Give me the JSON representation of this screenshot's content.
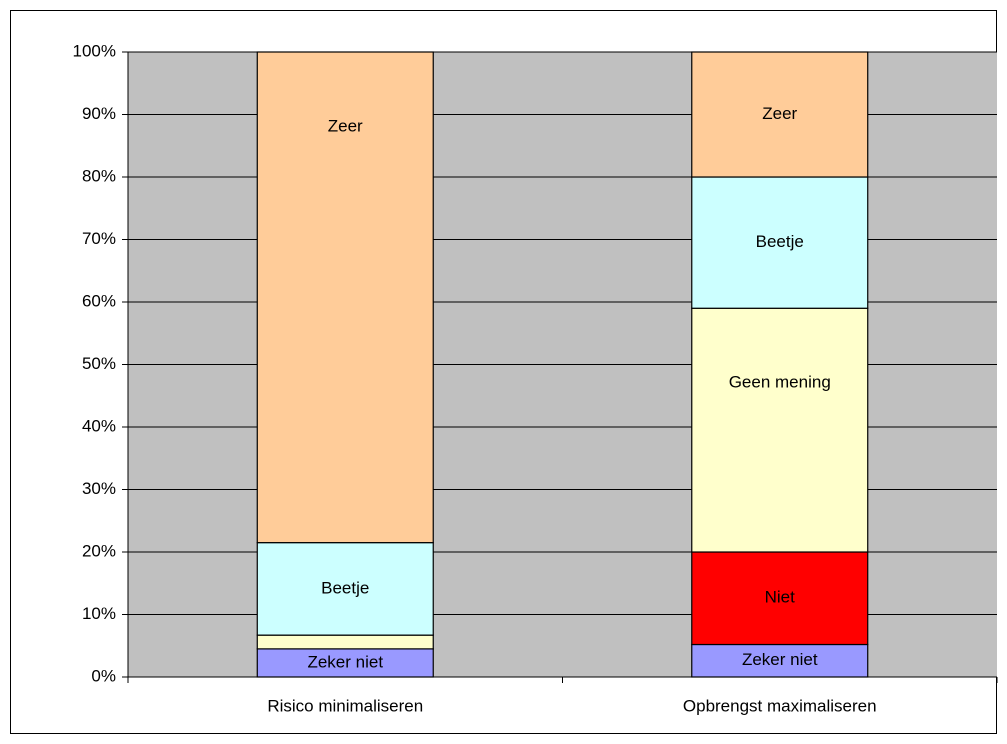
{
  "chart_data": {
    "type": "stacked_bar",
    "categories": [
      "Risico minimaliseren",
      "Opbrengst maximaliseren"
    ],
    "series": [
      {
        "name": "Zeker niet",
        "color": "#9999ff",
        "values": [
          4.5,
          5.2
        ]
      },
      {
        "name": "Niet",
        "color": "#ff0000",
        "values": [
          0,
          14.8
        ]
      },
      {
        "name": "Geen mening",
        "color": "#ffffcc",
        "values": [
          2.2,
          39
        ]
      },
      {
        "name": "Beetje",
        "color": "#ccffff",
        "values": [
          14.8,
          21
        ]
      },
      {
        "name": "Zeer",
        "color": "#ffcc99",
        "values": [
          78.5,
          20
        ]
      }
    ],
    "ylim": [
      0,
      100
    ],
    "yticks": [
      {
        "value": 0,
        "label": "0%"
      },
      {
        "value": 10,
        "label": "10%"
      },
      {
        "value": 20,
        "label": "20%"
      },
      {
        "value": 30,
        "label": "30%"
      },
      {
        "value": 40,
        "label": "40%"
      },
      {
        "value": 50,
        "label": "50%"
      },
      {
        "value": 60,
        "label": "60%"
      },
      {
        "value": 70,
        "label": "70%"
      },
      {
        "value": 80,
        "label": "80%"
      },
      {
        "value": 90,
        "label": "90%"
      },
      {
        "value": 100,
        "label": "100%"
      }
    ],
    "grid": true,
    "plot_background": "#c0c0c0"
  }
}
